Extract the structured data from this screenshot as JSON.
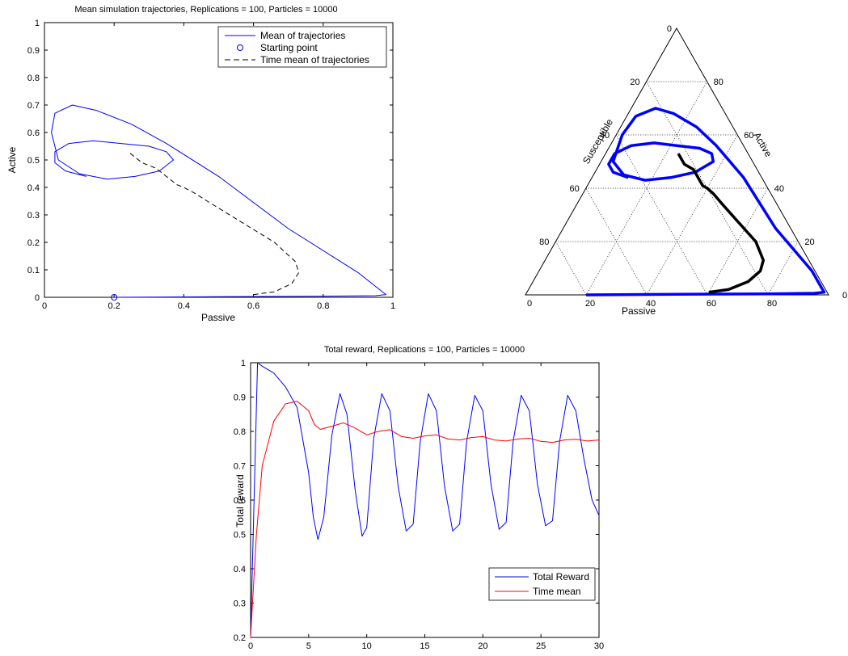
{
  "chart_data": [
    {
      "type": "line",
      "title": "Mean simulation trajectories, Replications = 100, Particles = 10000",
      "xlabel": "Passive",
      "ylabel": "Active",
      "xlim": [
        0,
        1
      ],
      "ylim": [
        0,
        1
      ],
      "xticks": [
        "0",
        "0.2",
        "0.4",
        "0.6",
        "0.8",
        "1"
      ],
      "yticks": [
        "0",
        "0.1",
        "0.2",
        "0.3",
        "0.4",
        "0.5",
        "0.6",
        "0.7",
        "0.8",
        "0.9",
        "1"
      ],
      "grid": false,
      "legend": "top-right",
      "series": [
        {
          "name": "Mean of trajectories",
          "color": "#0000ff",
          "style": "solid",
          "x": [
            0.2,
            0.5,
            0.8,
            0.95,
            0.98,
            0.9,
            0.7,
            0.5,
            0.35,
            0.25,
            0.15,
            0.08,
            0.03,
            0.02,
            0.04,
            0.1,
            0.18,
            0.26,
            0.33,
            0.37,
            0.35,
            0.3,
            0.22,
            0.14,
            0.07,
            0.03,
            0.03,
            0.06,
            0.12
          ],
          "y": [
            0.0,
            0.002,
            0.004,
            0.006,
            0.01,
            0.09,
            0.25,
            0.44,
            0.56,
            0.63,
            0.68,
            0.7,
            0.67,
            0.6,
            0.5,
            0.45,
            0.43,
            0.44,
            0.46,
            0.5,
            0.53,
            0.55,
            0.56,
            0.57,
            0.56,
            0.53,
            0.49,
            0.46,
            0.44
          ]
        },
        {
          "name": "Starting point",
          "color": "#0000ff",
          "style": "marker",
          "x": [
            0.2
          ],
          "y": [
            0.0
          ]
        },
        {
          "name": "Time mean of trajectories",
          "color": "#000000",
          "style": "dashed",
          "x": [
            0.6,
            0.66,
            0.71,
            0.73,
            0.72,
            0.66,
            0.57,
            0.48,
            0.43,
            0.4,
            0.38,
            0.35,
            0.32,
            0.28,
            0.25,
            0.24
          ],
          "y": [
            0.01,
            0.02,
            0.05,
            0.09,
            0.13,
            0.2,
            0.27,
            0.34,
            0.38,
            0.4,
            0.41,
            0.44,
            0.47,
            0.49,
            0.52,
            0.53
          ]
        }
      ]
    },
    {
      "type": "ternary",
      "axes": {
        "left": "Susceptible",
        "right": "Active",
        "bottom": "Passive"
      },
      "ticks": {
        "bottom": [
          "0",
          "20",
          "40",
          "60",
          "80"
        ],
        "left": [
          "20",
          "40",
          "60",
          "80"
        ],
        "right": [
          "20",
          "40",
          "60",
          "80"
        ],
        "apex": "0",
        "bottom_right": "0"
      },
      "grid": true,
      "series": [
        {
          "name": "",
          "color": "#0000ff",
          "passive": [
            0.2,
            0.5,
            0.8,
            0.95,
            0.98,
            0.9,
            0.7,
            0.5,
            0.35,
            0.25,
            0.15,
            0.08,
            0.03,
            0.02,
            0.04,
            0.1,
            0.18,
            0.26,
            0.33,
            0.37,
            0.35,
            0.3,
            0.22,
            0.14,
            0.07,
            0.03,
            0.03,
            0.06,
            0.12
          ],
          "active": [
            0.0,
            0.002,
            0.004,
            0.006,
            0.01,
            0.09,
            0.25,
            0.44,
            0.56,
            0.63,
            0.68,
            0.7,
            0.67,
            0.6,
            0.5,
            0.45,
            0.43,
            0.44,
            0.46,
            0.5,
            0.53,
            0.55,
            0.56,
            0.57,
            0.56,
            0.53,
            0.49,
            0.46,
            0.44
          ]
        },
        {
          "name": "",
          "color": "#000000",
          "passive": [
            0.6,
            0.66,
            0.71,
            0.73,
            0.72,
            0.66,
            0.57,
            0.48,
            0.43,
            0.4,
            0.38,
            0.35,
            0.32,
            0.28,
            0.25,
            0.24
          ],
          "active": [
            0.01,
            0.02,
            0.05,
            0.09,
            0.13,
            0.2,
            0.27,
            0.34,
            0.38,
            0.4,
            0.41,
            0.44,
            0.47,
            0.49,
            0.52,
            0.53
          ]
        }
      ]
    },
    {
      "type": "line",
      "title": "Total reward, Replications = 100, Particles = 10000",
      "xlabel": "",
      "ylabel": "Total reward",
      "xlim": [
        0,
        30
      ],
      "ylim": [
        0.2,
        1
      ],
      "xticks": [
        "0",
        "5",
        "10",
        "15",
        "20",
        "25",
        "30"
      ],
      "yticks": [
        "0.2",
        "0.3",
        "0.4",
        "0.5",
        "0.6",
        "0.7",
        "0.8",
        "0.9",
        "1"
      ],
      "grid": false,
      "legend": "bottom-right",
      "series": [
        {
          "name": "Total Reward",
          "color": "#0000ff",
          "x": [
            0,
            0.6,
            1,
            2,
            3,
            4,
            5,
            5.4,
            5.8,
            6.3,
            7,
            7.7,
            8.3,
            9,
            9.6,
            10,
            10.6,
            11.3,
            12,
            12.7,
            13.4,
            14,
            14.6,
            15.3,
            16,
            16.7,
            17.4,
            18,
            18.6,
            19.3,
            20,
            20.7,
            21.4,
            22,
            22.6,
            23.3,
            24,
            24.7,
            25.4,
            26,
            26.6,
            27.3,
            28,
            28.7,
            29.4,
            30
          ],
          "y": [
            0.2,
            1.0,
            0.99,
            0.97,
            0.93,
            0.87,
            0.68,
            0.55,
            0.485,
            0.55,
            0.79,
            0.91,
            0.85,
            0.63,
            0.495,
            0.52,
            0.78,
            0.91,
            0.86,
            0.64,
            0.51,
            0.53,
            0.77,
            0.91,
            0.86,
            0.64,
            0.51,
            0.53,
            0.77,
            0.905,
            0.86,
            0.645,
            0.515,
            0.535,
            0.77,
            0.905,
            0.86,
            0.645,
            0.525,
            0.54,
            0.77,
            0.905,
            0.86,
            0.72,
            0.6,
            0.555
          ]
        },
        {
          "name": "Time mean",
          "color": "#ff0000",
          "x": [
            0,
            0.5,
            1,
            2,
            3,
            4,
            5,
            5.5,
            6,
            7,
            8,
            9,
            10,
            11,
            12,
            13,
            14,
            15,
            16,
            17,
            18,
            19,
            20,
            21,
            22,
            23,
            24,
            25,
            26,
            27,
            28,
            29,
            30
          ],
          "y": [
            0.2,
            0.5,
            0.7,
            0.83,
            0.88,
            0.888,
            0.86,
            0.82,
            0.806,
            0.815,
            0.825,
            0.81,
            0.79,
            0.8,
            0.805,
            0.785,
            0.78,
            0.787,
            0.79,
            0.778,
            0.775,
            0.782,
            0.785,
            0.775,
            0.772,
            0.778,
            0.78,
            0.771,
            0.768,
            0.775,
            0.777,
            0.772,
            0.775
          ]
        }
      ]
    }
  ]
}
